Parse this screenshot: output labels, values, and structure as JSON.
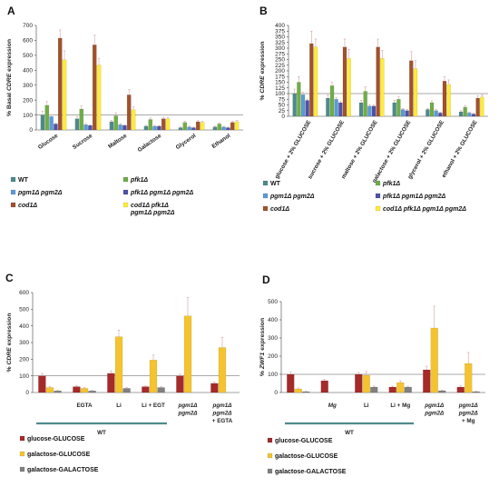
{
  "chart_data": [
    {
      "panel": "A",
      "type": "bar",
      "ylabel": "% Basal CDRE expression",
      "ylabel_prefix": "% Basal ",
      "ylabel_italic": "CDRE",
      "ylabel_suffix": " expression",
      "ylim": [
        0,
        700
      ],
      "yticks": [
        0,
        100,
        200,
        300,
        400,
        500,
        600,
        700
      ],
      "reference_line": 100,
      "categories": [
        "Glucose",
        "Sucrose",
        "Maltose",
        "Galactose",
        "Glycerol",
        "Ethanol"
      ],
      "series": [
        {
          "name": "WT",
          "color": "#4f8a8b",
          "values": [
            100,
            75,
            55,
            25,
            15,
            20
          ],
          "errors": [
            25,
            15,
            10,
            6,
            5,
            5
          ]
        },
        {
          "name": "pfk1Δ",
          "color": "#70ad47",
          "values": [
            165,
            140,
            95,
            70,
            50,
            40
          ],
          "errors": [
            25,
            20,
            20,
            10,
            8,
            6
          ]
        },
        {
          "name": "pgm1Δ pgm2Δ",
          "color": "#5b9bd5",
          "values": [
            90,
            35,
            35,
            25,
            20,
            20
          ],
          "errors": [
            10,
            8,
            8,
            5,
            5,
            5
          ]
        },
        {
          "name": "pfk1Δ pgm1Δ pgm2Δ",
          "color": "#4f52a8",
          "values": [
            40,
            30,
            30,
            25,
            15,
            15
          ],
          "errors": [
            5,
            5,
            5,
            5,
            4,
            4
          ]
        },
        {
          "name": "cod1Δ",
          "color": "#a0522d",
          "values": [
            615,
            570,
            235,
            75,
            55,
            50
          ],
          "errors": [
            55,
            65,
            35,
            10,
            8,
            8
          ]
        },
        {
          "name": "cod1Δ pfk1Δ pgm1Δ pgm2Δ",
          "color": "#ffeb3b",
          "values": [
            470,
            435,
            135,
            75,
            50,
            55
          ],
          "errors": [
            60,
            45,
            20,
            10,
            8,
            8
          ]
        }
      ]
    },
    {
      "panel": "B",
      "type": "bar",
      "ylabel": "% CDRE expression",
      "ylabel_prefix": "% ",
      "ylabel_italic": "CDRE",
      "ylabel_suffix": " expression",
      "ylim": [
        0,
        400
      ],
      "yticks": [
        0,
        25,
        50,
        75,
        100,
        125,
        150,
        175,
        200,
        225,
        250,
        275,
        300,
        325,
        350,
        375,
        400
      ],
      "reference_line": 100,
      "categories": [
        "glucose + 2% GLUCOSE",
        "sucrose + 2% GLUCOSE",
        "maltose + 2% GLUCOSE",
        "galactose + 2% GLUCOSE",
        "glycerol + 2% GLUCOSE",
        "ethanol + 2% GLUCOSE"
      ],
      "series": [
        {
          "name": "WT",
          "color": "#4f8a8b",
          "values": [
            100,
            80,
            60,
            60,
            30,
            20
          ],
          "errors": [
            20,
            15,
            10,
            10,
            5,
            5
          ]
        },
        {
          "name": "pfk1Δ",
          "color": "#70ad47",
          "values": [
            150,
            135,
            110,
            75,
            60,
            40
          ],
          "errors": [
            25,
            15,
            20,
            10,
            8,
            6
          ]
        },
        {
          "name": "pgm1Δ pgm2Δ",
          "color": "#5b9bd5",
          "values": [
            95,
            75,
            45,
            30,
            25,
            15
          ],
          "errors": [
            10,
            8,
            6,
            5,
            5,
            4
          ]
        },
        {
          "name": "pfk1Δ pgm1Δ pgm2Δ",
          "color": "#4f52a8",
          "values": [
            70,
            60,
            45,
            25,
            15,
            10
          ],
          "errors": [
            6,
            6,
            5,
            5,
            4,
            3
          ]
        },
        {
          "name": "cod1Δ",
          "color": "#a0522d",
          "values": [
            320,
            305,
            305,
            245,
            155,
            80
          ],
          "errors": [
            55,
            35,
            35,
            40,
            20,
            10
          ]
        },
        {
          "name": "cod1Δ pfk1Δ pgm1Δ pgm2Δ",
          "color": "#ffeb3b",
          "values": [
            305,
            255,
            255,
            210,
            140,
            85
          ],
          "errors": [
            35,
            40,
            35,
            35,
            20,
            10
          ]
        }
      ]
    },
    {
      "panel": "C",
      "type": "bar",
      "ylabel": "% CDRE expression",
      "ylabel_prefix": "% ",
      "ylabel_italic": "CDRE",
      "ylabel_suffix": " expression",
      "ylim": [
        0,
        600
      ],
      "yticks": [
        0,
        100,
        200,
        300,
        400,
        500,
        600
      ],
      "reference_line": 100,
      "categories": [
        "",
        "EGTA",
        "Li",
        "Li + EGT",
        "pgm1Δ pgm2Δ",
        "pgm1Δ pgm2Δ + EGTA"
      ],
      "category_lines": [
        [
          ""
        ],
        [
          "EGTA"
        ],
        [
          "Li"
        ],
        [
          "Li + EGT"
        ],
        [
          "pgm1Δ",
          "pgm2Δ"
        ],
        [
          "pgm1Δ",
          "pgm2Δ",
          "+ EGTA"
        ]
      ],
      "group_label": "WT",
      "series": [
        {
          "name": "glucose-GLUCOSE",
          "color": "#a52a2a",
          "values": [
            100,
            35,
            115,
            35,
            100,
            55
          ],
          "errors": [
            15,
            6,
            15,
            5,
            10,
            8
          ]
        },
        {
          "name": "galactose-GLUCOSE",
          "color": "#f4c430",
          "values": [
            30,
            25,
            335,
            195,
            460,
            270
          ],
          "errors": [
            6,
            5,
            40,
            30,
            110,
            60
          ]
        },
        {
          "name": "galactose-GALACTOSE",
          "color": "#808080",
          "values": [
            10,
            10,
            25,
            30,
            0,
            0
          ],
          "errors": [
            3,
            3,
            5,
            5,
            0,
            0
          ]
        }
      ]
    },
    {
      "panel": "D",
      "type": "bar",
      "ylabel": "% ZWF1 expression",
      "ylabel_prefix": "% ",
      "ylabel_italic": "ZWF1",
      "ylabel_suffix": " expression",
      "ylim": [
        0,
        500
      ],
      "yticks": [
        0,
        100,
        200,
        300,
        400,
        500
      ],
      "reference_line": 100,
      "categories": [
        "",
        "Mg",
        "Li",
        "Li + Mg",
        "pgm1Δ pgm2Δ",
        "pgm1Δ pgm2Δ + Mg"
      ],
      "category_lines": [
        [
          ""
        ],
        [
          "Mg"
        ],
        [
          "Li"
        ],
        [
          "Li + Mg"
        ],
        [
          "pgm1Δ",
          "pgm2Δ"
        ],
        [
          "pgm1Δ",
          "pgm2Δ",
          "+ Mg"
        ]
      ],
      "group_label": "WT",
      "series": [
        {
          "name": "glucose-GLUCOSE",
          "color": "#a52a2a",
          "values": [
            100,
            65,
            100,
            30,
            125,
            30
          ],
          "errors": [
            12,
            8,
            10,
            5,
            20,
            6
          ]
        },
        {
          "name": "galactose-GLUCOSE",
          "color": "#f4c430",
          "values": [
            20,
            0,
            95,
            55,
            355,
            160
          ],
          "errors": [
            5,
            0,
            20,
            10,
            120,
            60
          ]
        },
        {
          "name": "galactose-GALACTOSE",
          "color": "#808080",
          "values": [
            5,
            0,
            30,
            30,
            10,
            5
          ],
          "errors": [
            2,
            0,
            5,
            5,
            3,
            2
          ]
        }
      ]
    }
  ]
}
